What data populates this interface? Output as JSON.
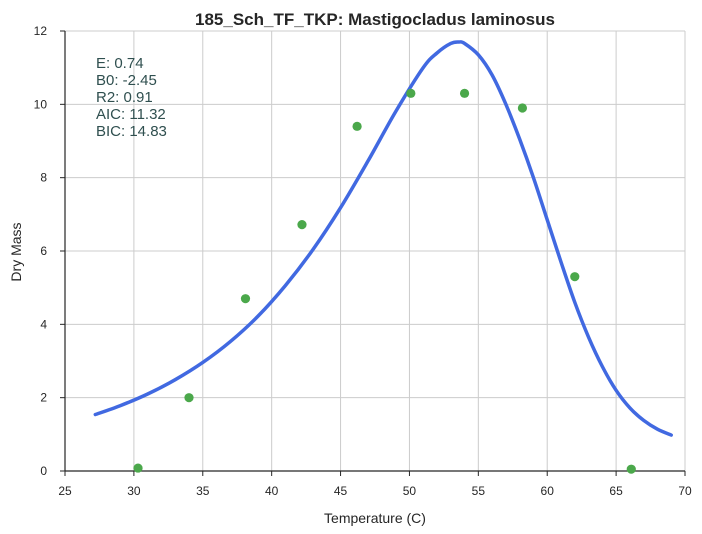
{
  "chart_data": {
    "type": "scatter",
    "title": "185_Sch_TF_TKP: Mastigocladus laminosus",
    "xlabel": "Temperature (C)",
    "ylabel": "Dry Mass",
    "xlim": [
      25,
      70
    ],
    "ylim": [
      0,
      12
    ],
    "x_ticks": [
      25,
      30,
      35,
      40,
      45,
      50,
      55,
      60,
      65,
      70
    ],
    "y_ticks": [
      0,
      2,
      4,
      6,
      8,
      10,
      12
    ],
    "grid": true,
    "colors": {
      "points": "#4ba84b",
      "fit_curve": "#4169e1"
    },
    "series": [
      {
        "kind": "points",
        "x": [
          30.3,
          34.0,
          38.1,
          42.2,
          46.2,
          50.1,
          54.0,
          58.2,
          62.0,
          66.1
        ],
        "y": [
          0.08,
          2.0,
          4.7,
          6.72,
          9.4,
          10.3,
          10.3,
          9.9,
          5.3,
          0.05
        ]
      },
      {
        "kind": "fit-curve",
        "x": [
          27.2,
          29,
          31,
          33,
          35,
          37,
          39,
          41,
          43,
          45,
          47,
          49,
          51,
          52,
          53,
          53.6,
          54,
          55,
          56,
          57,
          58,
          59,
          60,
          61,
          62,
          63,
          64,
          65,
          66,
          67,
          68,
          69
        ],
        "y": [
          1.54,
          1.78,
          2.1,
          2.49,
          2.96,
          3.53,
          4.22,
          5.06,
          6.04,
          7.18,
          8.46,
          9.8,
          11.0,
          11.4,
          11.66,
          11.7,
          11.66,
          11.35,
          10.8,
          10.0,
          9.05,
          8.0,
          6.85,
          5.7,
          4.6,
          3.65,
          2.85,
          2.2,
          1.72,
          1.38,
          1.14,
          0.98
        ]
      }
    ],
    "annotations": [
      {
        "label": "E:",
        "value": "0.74"
      },
      {
        "label": "B0:",
        "value": "-2.45"
      },
      {
        "label": "R2:",
        "value": "0.91"
      },
      {
        "label": "AIC:",
        "value": "11.32"
      },
      {
        "label": "BIC:",
        "value": "14.83"
      }
    ]
  }
}
